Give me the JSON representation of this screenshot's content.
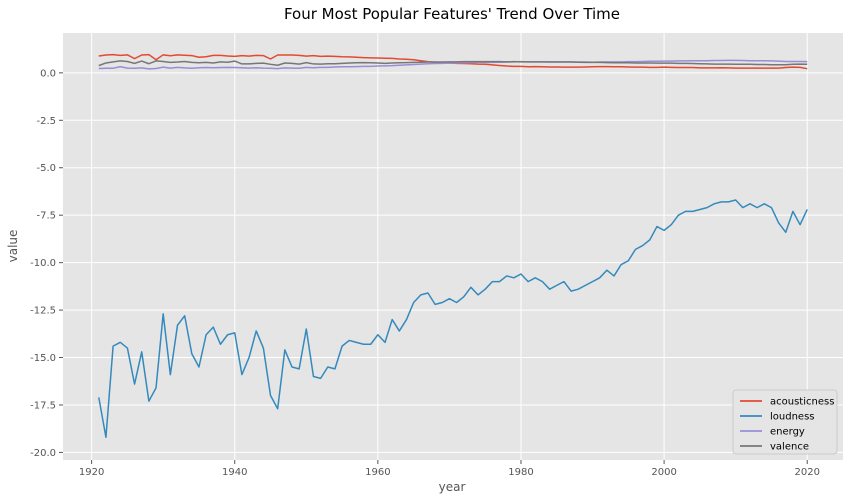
{
  "chart_data": {
    "type": "line",
    "title": "Four Most Popular Features' Trend Over Time",
    "xlabel": "year",
    "ylabel": "value",
    "xlim": [
      1916,
      2025
    ],
    "ylim": [
      -20.4,
      2.1
    ],
    "xticks": [
      1920,
      1940,
      1960,
      1980,
      2000,
      2020
    ],
    "yticks": [
      0.0,
      -2.5,
      -5.0,
      -7.5,
      -10.0,
      -12.5,
      -15.0,
      -17.5,
      -20.0
    ],
    "grid": true,
    "legend_position": "lower-right",
    "x": [
      1921,
      1922,
      1923,
      1924,
      1925,
      1926,
      1927,
      1928,
      1929,
      1930,
      1931,
      1932,
      1933,
      1934,
      1935,
      1936,
      1937,
      1938,
      1939,
      1940,
      1941,
      1942,
      1943,
      1944,
      1945,
      1946,
      1947,
      1948,
      1949,
      1950,
      1951,
      1952,
      1953,
      1954,
      1955,
      1956,
      1957,
      1958,
      1959,
      1960,
      1961,
      1962,
      1963,
      1964,
      1965,
      1966,
      1967,
      1968,
      1969,
      1970,
      1971,
      1972,
      1973,
      1974,
      1975,
      1976,
      1977,
      1978,
      1979,
      1980,
      1981,
      1982,
      1983,
      1984,
      1985,
      1986,
      1987,
      1988,
      1989,
      1990,
      1991,
      1992,
      1993,
      1994,
      1995,
      1996,
      1997,
      1998,
      1999,
      2000,
      2001,
      2002,
      2003,
      2004,
      2005,
      2006,
      2007,
      2008,
      2009,
      2010,
      2011,
      2012,
      2013,
      2014,
      2015,
      2016,
      2017,
      2018,
      2019,
      2020
    ],
    "series": [
      {
        "name": "acousticness",
        "color": "#E24A33",
        "values": [
          0.89,
          0.94,
          0.96,
          0.92,
          0.95,
          0.75,
          0.94,
          0.96,
          0.69,
          0.95,
          0.9,
          0.95,
          0.93,
          0.91,
          0.82,
          0.85,
          0.92,
          0.92,
          0.89,
          0.87,
          0.91,
          0.88,
          0.92,
          0.91,
          0.73,
          0.94,
          0.94,
          0.94,
          0.92,
          0.88,
          0.91,
          0.87,
          0.88,
          0.87,
          0.85,
          0.84,
          0.82,
          0.8,
          0.79,
          0.78,
          0.77,
          0.76,
          0.73,
          0.72,
          0.69,
          0.64,
          0.59,
          0.56,
          0.54,
          0.52,
          0.5,
          0.49,
          0.48,
          0.46,
          0.45,
          0.42,
          0.39,
          0.36,
          0.34,
          0.34,
          0.32,
          0.33,
          0.32,
          0.31,
          0.31,
          0.3,
          0.3,
          0.3,
          0.31,
          0.32,
          0.33,
          0.33,
          0.32,
          0.32,
          0.31,
          0.3,
          0.3,
          0.29,
          0.29,
          0.3,
          0.29,
          0.28,
          0.28,
          0.28,
          0.26,
          0.26,
          0.26,
          0.27,
          0.26,
          0.25,
          0.25,
          0.25,
          0.25,
          0.25,
          0.25,
          0.25,
          0.28,
          0.3,
          0.29,
          0.22
        ]
      },
      {
        "name": "loudness",
        "color": "#348ABD",
        "values": [
          -17.1,
          -19.2,
          -14.4,
          -14.2,
          -14.5,
          -16.4,
          -14.7,
          -17.3,
          -16.6,
          -12.7,
          -15.9,
          -13.3,
          -12.8,
          -14.8,
          -15.5,
          -13.8,
          -13.4,
          -14.3,
          -13.8,
          -13.7,
          -15.9,
          -15.0,
          -13.6,
          -14.5,
          -17.0,
          -17.7,
          -14.6,
          -15.5,
          -15.6,
          -13.5,
          -16.0,
          -16.1,
          -15.5,
          -15.6,
          -14.4,
          -14.1,
          -14.2,
          -14.3,
          -14.3,
          -13.8,
          -14.2,
          -13.0,
          -13.6,
          -13.0,
          -12.1,
          -11.7,
          -11.6,
          -12.2,
          -12.1,
          -11.9,
          -12.1,
          -11.8,
          -11.3,
          -11.7,
          -11.4,
          -11.0,
          -11.0,
          -10.7,
          -10.8,
          -10.6,
          -11.0,
          -10.8,
          -11.0,
          -11.4,
          -11.2,
          -11.0,
          -11.5,
          -11.4,
          -11.2,
          -11.0,
          -10.8,
          -10.4,
          -10.7,
          -10.1,
          -9.9,
          -9.3,
          -9.1,
          -8.8,
          -8.1,
          -8.3,
          -8.0,
          -7.5,
          -7.3,
          -7.3,
          -7.2,
          -7.1,
          -6.9,
          -6.8,
          -6.8,
          -6.7,
          -7.1,
          -6.9,
          -7.1,
          -6.9,
          -7.1,
          -7.9,
          -8.4,
          -7.3,
          -8.0,
          -7.2
        ]
      },
      {
        "name": "energy",
        "color": "#988ED5",
        "values": [
          0.23,
          0.24,
          0.24,
          0.33,
          0.25,
          0.24,
          0.26,
          0.21,
          0.23,
          0.3,
          0.25,
          0.29,
          0.26,
          0.24,
          0.27,
          0.28,
          0.27,
          0.28,
          0.29,
          0.28,
          0.27,
          0.25,
          0.27,
          0.25,
          0.24,
          0.22,
          0.26,
          0.25,
          0.24,
          0.29,
          0.27,
          0.29,
          0.29,
          0.31,
          0.32,
          0.32,
          0.33,
          0.34,
          0.34,
          0.36,
          0.37,
          0.38,
          0.4,
          0.42,
          0.44,
          0.46,
          0.48,
          0.49,
          0.5,
          0.51,
          0.52,
          0.53,
          0.54,
          0.55,
          0.55,
          0.55,
          0.56,
          0.57,
          0.58,
          0.59,
          0.58,
          0.58,
          0.58,
          0.58,
          0.58,
          0.58,
          0.58,
          0.57,
          0.57,
          0.56,
          0.57,
          0.58,
          0.58,
          0.58,
          0.59,
          0.59,
          0.6,
          0.61,
          0.61,
          0.62,
          0.62,
          0.63,
          0.63,
          0.64,
          0.64,
          0.64,
          0.65,
          0.65,
          0.66,
          0.66,
          0.65,
          0.64,
          0.64,
          0.64,
          0.63,
          0.62,
          0.6,
          0.6,
          0.6,
          0.59
        ]
      },
      {
        "name": "valence",
        "color": "#777777",
        "values": [
          0.38,
          0.52,
          0.58,
          0.63,
          0.6,
          0.5,
          0.62,
          0.48,
          0.63,
          0.6,
          0.55,
          0.57,
          0.6,
          0.55,
          0.53,
          0.55,
          0.52,
          0.58,
          0.56,
          0.62,
          0.47,
          0.47,
          0.5,
          0.51,
          0.45,
          0.4,
          0.52,
          0.5,
          0.46,
          0.54,
          0.47,
          0.46,
          0.48,
          0.48,
          0.5,
          0.52,
          0.53,
          0.54,
          0.53,
          0.52,
          0.5,
          0.52,
          0.53,
          0.54,
          0.55,
          0.56,
          0.57,
          0.57,
          0.57,
          0.58,
          0.58,
          0.59,
          0.59,
          0.59,
          0.59,
          0.59,
          0.59,
          0.58,
          0.59,
          0.58,
          0.58,
          0.58,
          0.58,
          0.57,
          0.57,
          0.57,
          0.57,
          0.56,
          0.55,
          0.55,
          0.55,
          0.54,
          0.53,
          0.53,
          0.53,
          0.52,
          0.52,
          0.52,
          0.51,
          0.51,
          0.51,
          0.5,
          0.5,
          0.49,
          0.48,
          0.47,
          0.46,
          0.46,
          0.46,
          0.45,
          0.45,
          0.45,
          0.44,
          0.44,
          0.43,
          0.43,
          0.43,
          0.45,
          0.46,
          0.45
        ]
      }
    ]
  }
}
